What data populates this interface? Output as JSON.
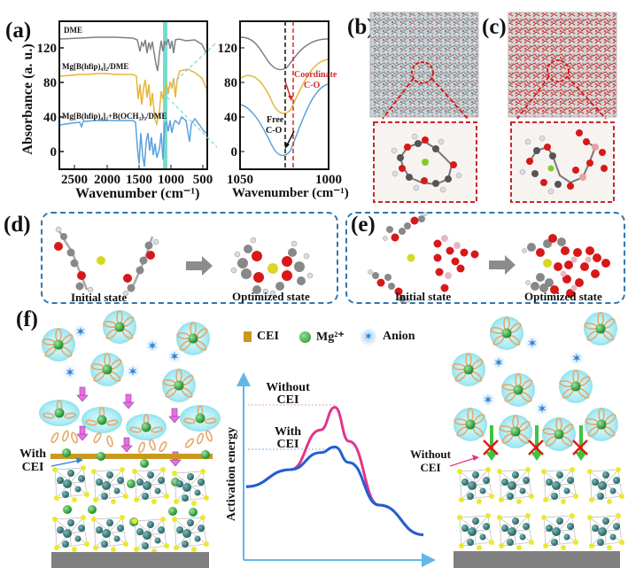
{
  "panels": {
    "a": {
      "label": "(a)",
      "ylabel": "Absorbance (a. u.)",
      "xlabel": "Wavenumber (cm⁻¹)",
      "yticks": [
        "120",
        "80",
        "40",
        "0"
      ],
      "xticks": [
        "2500",
        "2000",
        "1500",
        "1000",
        "500"
      ],
      "series_labels": [
        "DME",
        "Mg[B(hfip)₄]₂/DME",
        "Mg[B(hfip)₄]₂+B(OCH₃)₃/DME"
      ],
      "colors": {
        "dme": "#7b8086",
        "mg": "#e8b53a",
        "mgb": "#5aa2dc",
        "highlight": "#5fd6c4"
      }
    },
    "a_zoom": {
      "xlabel": "Wavenumber (cm⁻¹)",
      "yticks": [
        "120",
        "80",
        "40",
        "0"
      ],
      "xticks": [
        "1050",
        "1000"
      ],
      "annotation_coordinate": "Coordinate",
      "annotation_coordinate2": "C-O",
      "annotation_free": "Free",
      "annotation_free2": "C-O"
    },
    "b": {
      "label": "(b)"
    },
    "c": {
      "label": "(c)"
    },
    "d": {
      "label": "(d)",
      "initial": "Initial state",
      "optimized": "Optimized state"
    },
    "e": {
      "label": "(e)",
      "initial": "Initial state",
      "optimized": "Optimized state"
    },
    "f": {
      "label": "(f)",
      "legend": {
        "cei": "CEI",
        "mg": "Mg²⁺",
        "anion": "Anion"
      },
      "with_cei": [
        "With",
        "CEI"
      ],
      "without_cei": [
        "Without",
        "CEI"
      ],
      "energy_ylabel": "Activation energy",
      "energy_without": [
        "Without",
        "CEI"
      ],
      "energy_with": [
        "With",
        "CEI"
      ]
    }
  },
  "chart_data": [
    {
      "type": "line",
      "title": "",
      "xlabel": "Wavenumber (cm-1)",
      "ylabel": "Absorbance (a. u.)",
      "xlim": [
        2700,
        400
      ],
      "ylim": [
        -20,
        150
      ],
      "x_ticks": [
        2500,
        2000,
        1500,
        1000,
        500
      ],
      "y_ticks": [
        0,
        40,
        80,
        120
      ],
      "highlight_band": [
        1060,
        1025
      ],
      "series": [
        {
          "name": "DME",
          "baseline": 128
        },
        {
          "name": "Mg[B(hfip)4]2/DME",
          "baseline": 88
        },
        {
          "name": "Mg[B(hfip)4]2+B(OCH3)3/DME",
          "baseline": 32
        }
      ]
    },
    {
      "type": "line",
      "title": "",
      "xlabel": "Wavenumber (cm-1)",
      "xlim": [
        1050,
        1000
      ],
      "ylim": [
        -20,
        145
      ],
      "x_ticks": [
        1050,
        1000
      ],
      "y_ticks": [
        0,
        40,
        80,
        120
      ],
      "reference_lines": [
        {
          "name": "Free C-O",
          "x": 1030,
          "color": "#111111"
        },
        {
          "name": "Coordinate C-O",
          "x": 1026,
          "color": "#d42a2a"
        }
      ],
      "series": [
        {
          "name": "DME",
          "x": [
            1050,
            1040,
            1030,
            1020,
            1010,
            1000
          ],
          "y": [
            130,
            118,
            92,
            115,
            132,
            135
          ]
        },
        {
          "name": "Mg[B(hfip)4]2/DME",
          "x": [
            1050,
            1040,
            1030,
            1020,
            1010,
            1000
          ],
          "y": [
            82,
            68,
            44,
            55,
            92,
            106
          ]
        },
        {
          "name": "Mg[B(hfip)4]2+B(OCH3)3/DME",
          "x": [
            1050,
            1040,
            1030,
            1020,
            1010,
            1000
          ],
          "y": [
            55,
            35,
            -8,
            20,
            62,
            78
          ]
        }
      ]
    },
    {
      "type": "line",
      "title": "",
      "ylabel": "Activation energy",
      "series": [
        {
          "name": "Without CEI",
          "color": "#e0358a",
          "x": [
            0,
            0.25,
            0.42,
            0.5,
            0.58,
            0.75,
            1
          ],
          "y": [
            0.38,
            0.5,
            0.78,
            0.94,
            0.7,
            0.25,
            0.04
          ]
        },
        {
          "name": "With CEI",
          "color": "#1f5fd4",
          "x": [
            0,
            0.25,
            0.42,
            0.5,
            0.58,
            0.75,
            1
          ],
          "y": [
            0.38,
            0.5,
            0.62,
            0.66,
            0.55,
            0.25,
            0.04
          ]
        }
      ]
    }
  ]
}
